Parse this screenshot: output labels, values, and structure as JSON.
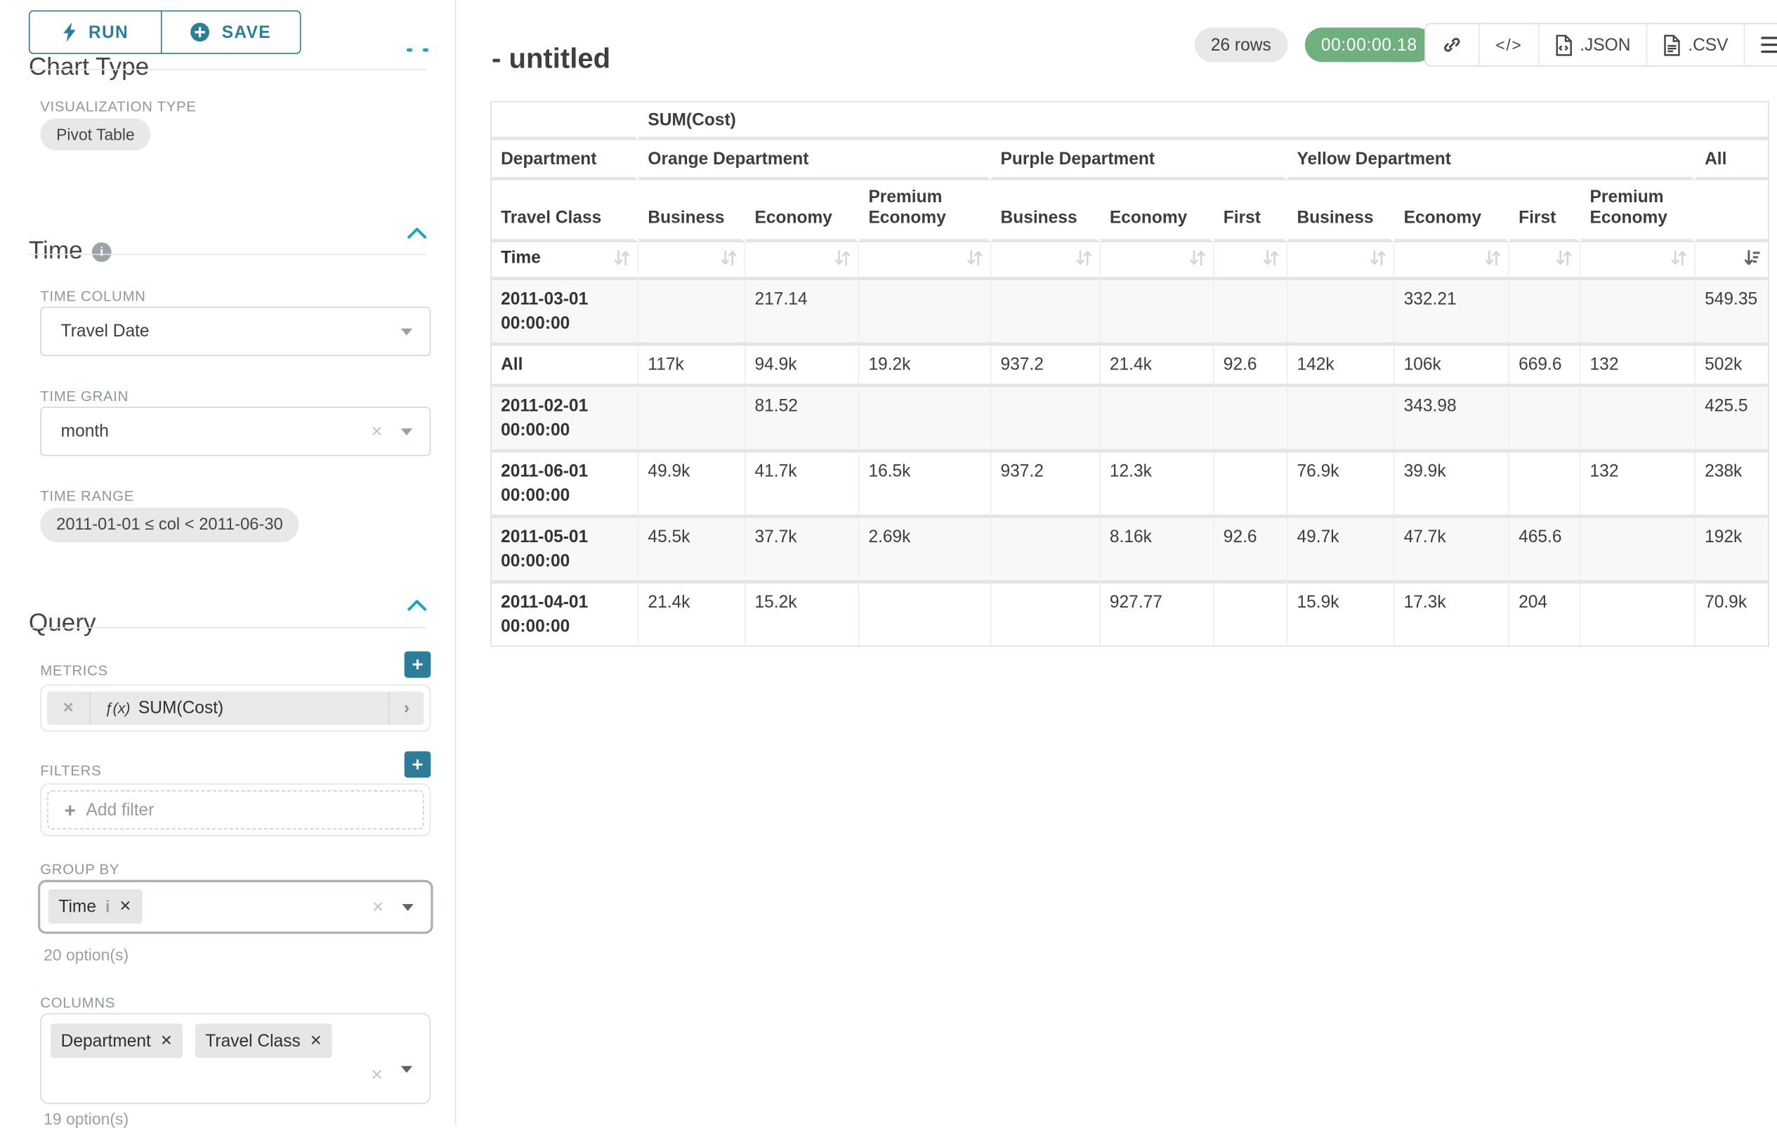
{
  "colors": {
    "accent_teal": "#2c7d99",
    "chevron_blue": "#1fa2c7",
    "timer_green": "#6fb07e"
  },
  "icons": {
    "clear_glyph": "×",
    "close_glyph": "✕",
    "info_glyph": "i",
    "code_glyph": "</>",
    "metric_chevron": "›"
  },
  "sidebar": {
    "chart_type": {
      "heading": "Chart Type",
      "run_label": "RUN",
      "save_label": "SAVE",
      "viz_type_label": "VISUALIZATION TYPE",
      "viz_type_value": "Pivot Table"
    },
    "time": {
      "heading": "Time",
      "time_column_label": "TIME COLUMN",
      "time_column_value": "Travel Date",
      "time_grain_label": "TIME GRAIN",
      "time_grain_value": "month",
      "time_range_label": "TIME RANGE",
      "time_range_value": "2011-01-01 ≤ col < 2011-06-30"
    },
    "query": {
      "heading": "Query",
      "metrics_label": "METRICS",
      "metric": {
        "fx": "ƒ(x)",
        "name": "SUM(Cost)"
      },
      "filters_label": "FILTERS",
      "add_filter_label": "Add filter",
      "group_by_label": "GROUP BY",
      "group_by_tags": [
        "Time"
      ],
      "group_by_hint": "20 option(s)",
      "columns_label": "COLUMNS",
      "columns_tags": [
        "Department",
        "Travel Class"
      ],
      "columns_hint": "19 option(s)"
    }
  },
  "header": {
    "title": "- untitled",
    "rows_badge": "26 rows",
    "timer_badge": "00:00:00.18",
    "export": {
      "json_label": ".JSON",
      "csv_label": ".CSV"
    }
  },
  "pivot_table": {
    "type": "table",
    "metric_header": "SUM(Cost)",
    "row1_dim_label": "Department",
    "row2_dim_label": "Travel Class",
    "row3_dim_label": "Time",
    "sorted_column": "All",
    "sort_direction": "desc",
    "col_groups": [
      {
        "name": "Orange Department",
        "classes": [
          "Business",
          "Economy",
          "Premium Economy"
        ]
      },
      {
        "name": "Purple Department",
        "classes": [
          "Business",
          "Economy",
          "First"
        ]
      },
      {
        "name": "Yellow Department",
        "classes": [
          "Business",
          "Economy",
          "First",
          "Premium Economy"
        ]
      },
      {
        "name": "All",
        "classes": [
          ""
        ]
      }
    ],
    "rows": [
      {
        "label": "2011-03-01 00:00:00",
        "values": [
          "",
          "217.14",
          "",
          "",
          "",
          "",
          "",
          "332.21",
          "",
          "",
          "549.35"
        ]
      },
      {
        "label": "All",
        "values": [
          "117k",
          "94.9k",
          "19.2k",
          "937.2",
          "21.4k",
          "92.6",
          "142k",
          "106k",
          "669.6",
          "132",
          "502k"
        ]
      },
      {
        "label": "2011-02-01 00:00:00",
        "values": [
          "",
          "81.52",
          "",
          "",
          "",
          "",
          "",
          "343.98",
          "",
          "",
          "425.5"
        ]
      },
      {
        "label": "2011-06-01 00:00:00",
        "values": [
          "49.9k",
          "41.7k",
          "16.5k",
          "937.2",
          "12.3k",
          "",
          "76.9k",
          "39.9k",
          "",
          "132",
          "238k"
        ]
      },
      {
        "label": "2011-05-01 00:00:00",
        "values": [
          "45.5k",
          "37.7k",
          "2.69k",
          "",
          "8.16k",
          "92.6",
          "49.7k",
          "47.7k",
          "465.6",
          "",
          "192k"
        ]
      },
      {
        "label": "2011-04-01 00:00:00",
        "values": [
          "21.4k",
          "15.2k",
          "",
          "",
          "927.77",
          "",
          "15.9k",
          "17.3k",
          "204",
          "",
          "70.9k"
        ]
      }
    ]
  }
}
